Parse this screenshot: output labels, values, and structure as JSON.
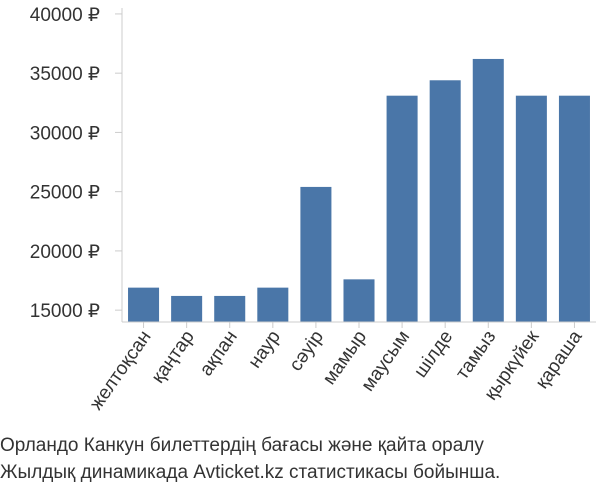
{
  "chart_data": {
    "type": "bar",
    "categories": [
      "желтоқсан",
      "қаңтар",
      "ақпан",
      "наур",
      "сәуір",
      "мамыр",
      "маусым",
      "шілде",
      "тамыз",
      "қыркүйек",
      "қараша"
    ],
    "values": [
      16900,
      16200,
      16200,
      16900,
      25400,
      17600,
      33100,
      34400,
      36200,
      33100,
      33100
    ],
    "yticks": [
      15000,
      20000,
      25000,
      30000,
      35000,
      40000
    ],
    "ytick_labels": [
      "15000 ₽",
      "20000 ₽",
      "25000 ₽",
      "30000 ₽",
      "35000 ₽",
      "40000 ₽"
    ],
    "ylim": [
      14000,
      40500
    ],
    "bar_color": "#4a76a8",
    "axis_color": "#cccccc",
    "grid": false
  },
  "caption": {
    "line1": "Орландо Канкун билеттердің бағасы және қайта оралу",
    "line2": "Жылдық динамикада Avticket.kz статистикасы бойынша."
  }
}
